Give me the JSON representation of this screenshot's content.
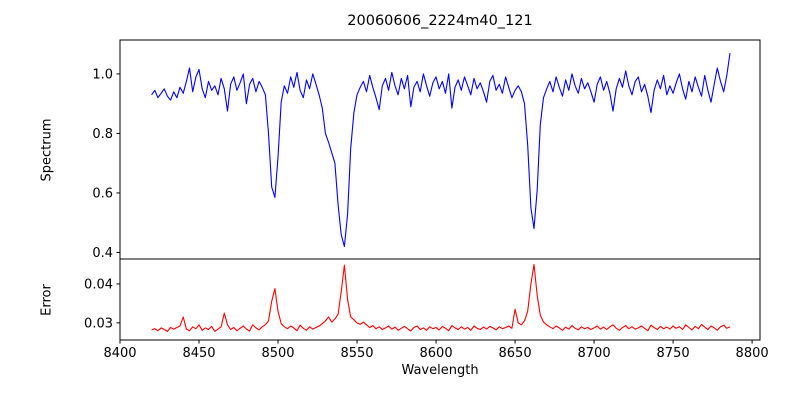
{
  "chart_data": [
    {
      "type": "line",
      "name": "spectrum",
      "title": "20060606_2224m40_121",
      "ylabel": "Spectrum",
      "color": "#0000ff",
      "xlim": [
        8400,
        8805
      ],
      "ylim": [
        0.378,
        1.114
      ],
      "yticks": [
        0.4,
        0.6,
        0.8,
        1.0
      ],
      "ytick_labels": [
        "0.4",
        "0.6",
        "0.8",
        "1.0"
      ],
      "x_start": 8420,
      "x_step": 2,
      "values": [
        0.93,
        0.945,
        0.92,
        0.935,
        0.95,
        0.925,
        0.912,
        0.94,
        0.92,
        0.955,
        0.935,
        0.975,
        1.02,
        0.94,
        0.99,
        1.015,
        0.95,
        0.92,
        0.975,
        0.945,
        0.96,
        0.93,
        0.985,
        0.95,
        0.875,
        0.965,
        0.99,
        0.945,
        0.97,
        1.0,
        0.9,
        0.965,
        0.985,
        0.94,
        0.975,
        0.955,
        0.93,
        0.8,
        0.62,
        0.585,
        0.72,
        0.905,
        0.96,
        0.935,
        0.99,
        0.955,
        1.005,
        0.945,
        0.92,
        0.98,
        0.95,
        1.0,
        0.965,
        0.93,
        0.885,
        0.8,
        0.77,
        0.735,
        0.7,
        0.56,
        0.46,
        0.42,
        0.53,
        0.75,
        0.87,
        0.93,
        0.955,
        0.975,
        0.94,
        0.995,
        0.955,
        0.92,
        0.88,
        0.96,
        0.985,
        0.945,
        1.005,
        0.96,
        0.93,
        0.985,
        0.95,
        0.995,
        0.89,
        0.955,
        0.975,
        0.94,
        1.0,
        0.96,
        0.925,
        0.97,
        0.99,
        0.95,
        0.975,
        0.935,
        1.0,
        0.885,
        0.955,
        0.98,
        0.945,
        0.99,
        0.96,
        0.93,
        0.985,
        0.95,
        0.97,
        0.94,
        0.905,
        0.975,
        0.995,
        0.945,
        0.965,
        0.935,
        0.99,
        0.955,
        0.92,
        0.945,
        0.96,
        0.94,
        0.9,
        0.76,
        0.55,
        0.48,
        0.61,
        0.83,
        0.92,
        0.95,
        0.975,
        0.94,
        0.99,
        0.955,
        0.925,
        0.98,
        0.945,
        1.0,
        0.96,
        0.935,
        0.985,
        0.95,
        0.97,
        0.94,
        0.905,
        0.965,
        0.99,
        0.945,
        0.975,
        0.935,
        0.875,
        0.95,
        0.985,
        0.955,
        1.01,
        0.96,
        0.93,
        0.975,
        0.99,
        0.94,
        0.965,
        0.925,
        0.87,
        0.945,
        0.98,
        0.95,
        0.995,
        0.93,
        0.96,
        0.935,
        0.97,
        1.0,
        0.95,
        0.915,
        0.975,
        0.94,
        0.99,
        0.955,
        0.925,
        0.995,
        0.945,
        0.905,
        0.965,
        1.02,
        0.975,
        0.94,
        0.995,
        1.07
      ]
    },
    {
      "type": "line",
      "name": "error",
      "ylabel": "Error",
      "xlabel": "Wavelength",
      "color": "#ff0000",
      "xlim": [
        8400,
        8805
      ],
      "ylim": [
        0.0256,
        0.0464
      ],
      "yticks": [
        0.03,
        0.04
      ],
      "ytick_labels": [
        "0.03",
        "0.04"
      ],
      "xticks": [
        8400,
        8450,
        8500,
        8550,
        8600,
        8650,
        8700,
        8750,
        8800
      ],
      "xtick_labels": [
        "8400",
        "8450",
        "8500",
        "8550",
        "8600",
        "8650",
        "8700",
        "8750",
        "8800"
      ],
      "x_start": 8420,
      "x_step": 2,
      "values": [
        0.0282,
        0.0285,
        0.028,
        0.0287,
        0.0283,
        0.0278,
        0.0288,
        0.0284,
        0.0288,
        0.0292,
        0.0315,
        0.0284,
        0.028,
        0.029,
        0.0285,
        0.0295,
        0.0281,
        0.0287,
        0.0283,
        0.0291,
        0.0278,
        0.0284,
        0.029,
        0.0325,
        0.0295,
        0.0283,
        0.0288,
        0.028,
        0.0286,
        0.0292,
        0.0284,
        0.0279,
        0.0295,
        0.0287,
        0.0282,
        0.029,
        0.0295,
        0.0305,
        0.0355,
        0.0388,
        0.033,
        0.0298,
        0.029,
        0.0285,
        0.0292,
        0.0287,
        0.028,
        0.0294,
        0.0286,
        0.0281,
        0.029,
        0.0284,
        0.0288,
        0.0292,
        0.0298,
        0.0305,
        0.0315,
        0.0302,
        0.031,
        0.0322,
        0.038,
        0.0448,
        0.036,
        0.0315,
        0.0308,
        0.03,
        0.0296,
        0.0302,
        0.0295,
        0.0288,
        0.0293,
        0.0285,
        0.029,
        0.0283,
        0.0287,
        0.0292,
        0.0284,
        0.0289,
        0.0281,
        0.0286,
        0.0291,
        0.0285,
        0.0279,
        0.0288,
        0.0292,
        0.0283,
        0.0287,
        0.0281,
        0.029,
        0.0285,
        0.0288,
        0.0282,
        0.0291,
        0.0286,
        0.028,
        0.0293,
        0.0287,
        0.0283,
        0.029,
        0.0284,
        0.0288,
        0.0281,
        0.0292,
        0.0286,
        0.0283,
        0.0289,
        0.0284,
        0.0291,
        0.0287,
        0.0282,
        0.029,
        0.0285,
        0.0288,
        0.0292,
        0.0286,
        0.0335,
        0.03,
        0.0295,
        0.0305,
        0.033,
        0.04,
        0.045,
        0.037,
        0.032,
        0.0302,
        0.0295,
        0.029,
        0.0285,
        0.0292,
        0.0287,
        0.0281,
        0.0289,
        0.0284,
        0.0293,
        0.0286,
        0.0282,
        0.029,
        0.0285,
        0.0288,
        0.0283,
        0.0287,
        0.0292,
        0.0284,
        0.0289,
        0.0283,
        0.029,
        0.0295,
        0.0286,
        0.0281,
        0.0288,
        0.0293,
        0.0285,
        0.029,
        0.0284,
        0.0287,
        0.0292,
        0.0286,
        0.028,
        0.0294,
        0.0288,
        0.0283,
        0.0291,
        0.0285,
        0.0289,
        0.0284,
        0.0292,
        0.0286,
        0.029,
        0.0283,
        0.0295,
        0.0288,
        0.0282,
        0.0291,
        0.0285,
        0.0296,
        0.0289,
        0.0283,
        0.0292,
        0.0287,
        0.0281,
        0.029,
        0.0294,
        0.0286,
        0.029
      ]
    }
  ]
}
